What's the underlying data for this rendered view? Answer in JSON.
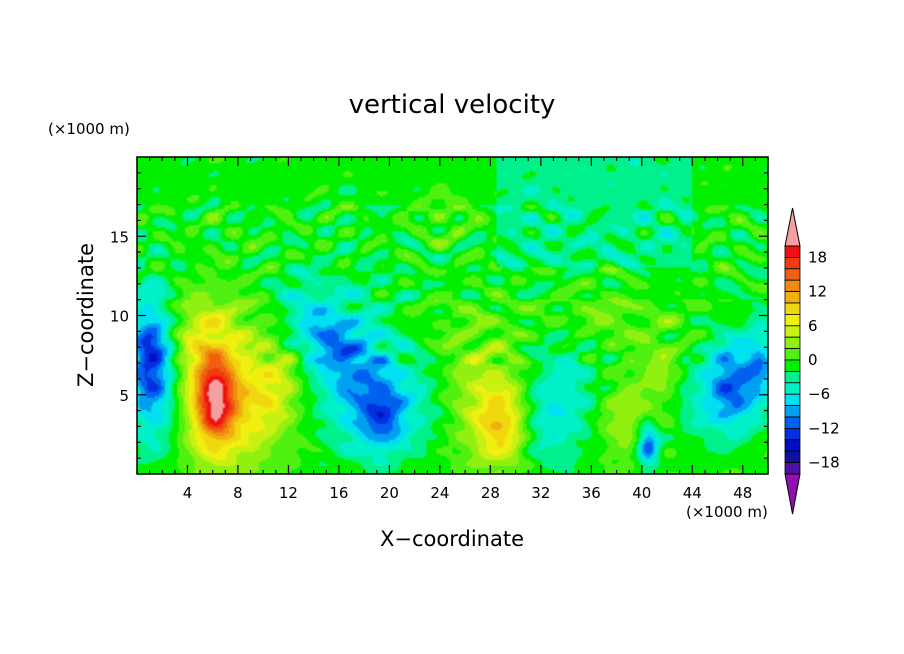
{
  "chart_data": {
    "type": "heatmap",
    "title": "vertical velocity",
    "xlabel": "X−coordinate",
    "ylabel": "Z−coordinate",
    "x_unit": "(×1000 m)",
    "y_unit": "(×1000 m)",
    "xlim": [
      0,
      50
    ],
    "ylim": [
      0,
      20
    ],
    "x_ticks": [
      4,
      8,
      12,
      16,
      20,
      24,
      28,
      32,
      36,
      40,
      44,
      48
    ],
    "y_ticks": [
      5,
      10,
      15
    ],
    "colorbar": {
      "label_values": [
        18,
        12,
        6,
        0,
        -6,
        -12,
        -18
      ],
      "labels": [
        "18",
        "12",
        "6",
        "0",
        "−6",
        "−12",
        "−18"
      ],
      "levels": [
        {
          "min": 20,
          "max": null,
          "color": "#f4a0a0"
        },
        {
          "min": 18,
          "max": 20,
          "color": "#f01010"
        },
        {
          "min": 16,
          "max": 18,
          "color": "#f03a10"
        },
        {
          "min": 14,
          "max": 16,
          "color": "#f06010"
        },
        {
          "min": 12,
          "max": 14,
          "color": "#f08a10"
        },
        {
          "min": 10,
          "max": 12,
          "color": "#f0b010"
        },
        {
          "min": 8,
          "max": 10,
          "color": "#f0d810"
        },
        {
          "min": 6,
          "max": 8,
          "color": "#f0f010"
        },
        {
          "min": 4,
          "max": 6,
          "color": "#c8f010"
        },
        {
          "min": 2,
          "max": 4,
          "color": "#90f010"
        },
        {
          "min": 0,
          "max": 2,
          "color": "#50f010"
        },
        {
          "min": -2,
          "max": 0,
          "color": "#00f000"
        },
        {
          "min": -4,
          "max": -2,
          "color": "#00f08c"
        },
        {
          "min": -6,
          "max": -4,
          "color": "#00f0c8"
        },
        {
          "min": -8,
          "max": -6,
          "color": "#00e0f0"
        },
        {
          "min": -10,
          "max": -8,
          "color": "#00a0f0"
        },
        {
          "min": -12,
          "max": -10,
          "color": "#0060f0"
        },
        {
          "min": -14,
          "max": -12,
          "color": "#0030e0"
        },
        {
          "min": -16,
          "max": -14,
          "color": "#0010c0"
        },
        {
          "min": -18,
          "max": -16,
          "color": "#1010a0"
        },
        {
          "min": -20,
          "max": -18,
          "color": "#5010a0"
        },
        {
          "min": null,
          "max": -20,
          "color": "#9010b0"
        }
      ]
    },
    "features": [
      {
        "x": 6.2,
        "z": 4.6,
        "sx": 1.1,
        "sz": 1.9,
        "value": 15
      },
      {
        "x": 6.5,
        "z": 5.5,
        "sx": 2.4,
        "sz": 3.6,
        "value": 7
      },
      {
        "x": 5.0,
        "z": 8.5,
        "sx": 1.5,
        "sz": 2.0,
        "value": 3
      },
      {
        "x": 9.5,
        "z": 4.0,
        "sx": 1.6,
        "sz": 2.0,
        "value": 4
      },
      {
        "x": 11.2,
        "z": 5.8,
        "sx": 1.2,
        "sz": 1.6,
        "value": 4
      },
      {
        "x": 1.0,
        "z": 7.5,
        "sx": 1.2,
        "sz": 2.6,
        "value": -10
      },
      {
        "x": 1.5,
        "z": 5.0,
        "sx": 1.5,
        "sz": 3.5,
        "value": -5
      },
      {
        "x": 17.5,
        "z": 6.0,
        "sx": 2.2,
        "sz": 3.2,
        "value": -9
      },
      {
        "x": 15.0,
        "z": 8.5,
        "sx": 1.5,
        "sz": 1.5,
        "value": -6
      },
      {
        "x": 19.5,
        "z": 3.5,
        "sx": 1.2,
        "sz": 1.5,
        "value": -7
      },
      {
        "x": 22.0,
        "z": 4.5,
        "sx": 1.8,
        "sz": 2.5,
        "value": -4
      },
      {
        "x": 26.5,
        "z": 6.5,
        "sx": 2.0,
        "sz": 2.5,
        "value": 2
      },
      {
        "x": 29.0,
        "z": 3.0,
        "sx": 1.5,
        "sz": 1.7,
        "value": 8
      },
      {
        "x": 28.5,
        "z": 4.2,
        "sx": 2.2,
        "sz": 2.5,
        "value": 3
      },
      {
        "x": 34.0,
        "z": 5.0,
        "sx": 2.0,
        "sz": 3.0,
        "value": -5
      },
      {
        "x": 31.5,
        "z": 3.0,
        "sx": 1.5,
        "sz": 2.0,
        "value": -4
      },
      {
        "x": 38.5,
        "z": 3.5,
        "sx": 1.4,
        "sz": 1.5,
        "value": 4
      },
      {
        "x": 40.5,
        "z": 1.8,
        "sx": 0.6,
        "sz": 0.9,
        "value": -12
      },
      {
        "x": 41.5,
        "z": 6.5,
        "sx": 1.2,
        "sz": 1.5,
        "value": 3
      },
      {
        "x": 47.0,
        "z": 5.5,
        "sx": 1.5,
        "sz": 2.2,
        "value": -11
      },
      {
        "x": 49.5,
        "z": 7.0,
        "sx": 1.0,
        "sz": 2.0,
        "value": -7
      },
      {
        "x": 44.0,
        "z": 4.5,
        "sx": 1.2,
        "sz": 2.0,
        "value": -3
      },
      {
        "x": 36.5,
        "z": 10.0,
        "sx": 2.5,
        "sz": 1.5,
        "value": 2
      },
      {
        "x": 24.5,
        "z": 16.5,
        "sx": 1.5,
        "sz": 1.2,
        "value": 2
      },
      {
        "x": 13.0,
        "z": 10.5,
        "sx": 1.5,
        "sz": 1.5,
        "value": -4
      }
    ],
    "background_regions": [
      {
        "x_range": [
          0,
          50
        ],
        "z_range": [
          11,
          20
        ],
        "value": -1
      },
      {
        "x_range": [
          28.5,
          44
        ],
        "z_range": [
          13,
          20
        ],
        "value": -3
      }
    ]
  }
}
